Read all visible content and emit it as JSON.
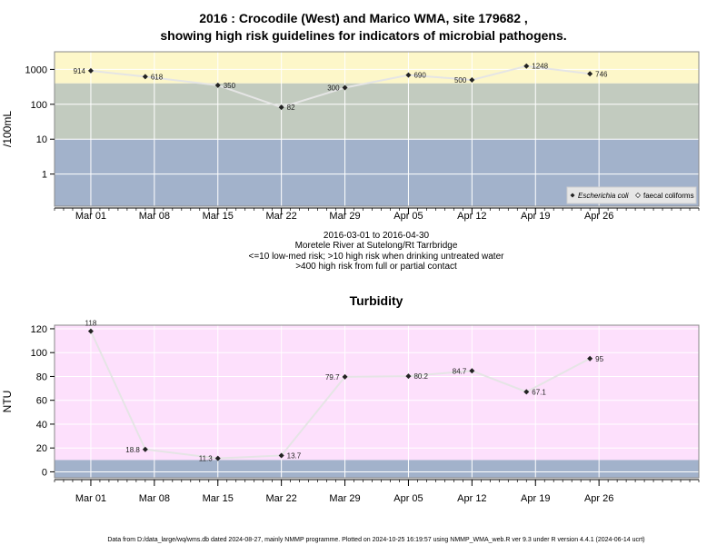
{
  "chart_data": [
    {
      "type": "line",
      "title": [
        "2016 : Crocodile (West) and Marico WMA, site 179682 ,",
        "showing high risk guidelines for indicators of microbial pathogens."
      ],
      "ylabel": "/100mL",
      "xlabel": [
        "2016-03-01 to 2016-04-30",
        "Moretele River at Sutelong/Rt Tarrbridge",
        "<=10 low-med risk; >10 high risk when drinking untreated water",
        ">400 high risk from full or partial contact"
      ],
      "yscale": "log",
      "ylim": [
        0.12,
        3200
      ],
      "xlim": [
        "2016-02-26",
        "2016-05-07"
      ],
      "yticks": [
        1,
        10,
        100,
        1000
      ],
      "ytick_labels": [
        "1",
        "10",
        "100",
        "1000"
      ],
      "xticks": [
        "2016-03-01",
        "2016-03-08",
        "2016-03-15",
        "2016-03-22",
        "2016-03-29",
        "2016-04-05",
        "2016-04-12",
        "2016-04-19",
        "2016-04-26"
      ],
      "xtick_labels": [
        "Mar 01",
        "Mar 08",
        "Mar 15",
        "Mar 22",
        "Mar 29",
        "Apr 05",
        "Apr 12",
        "Apr 19",
        "Apr 26"
      ],
      "bands": [
        {
          "from": 0.12,
          "to": 10,
          "color": "#a2b2cb"
        },
        {
          "from": 10,
          "to": 400,
          "color": "#c2cbbf"
        },
        {
          "from": 400,
          "to": 3200,
          "color": "#fdf7c9"
        }
      ],
      "grid": true,
      "legend": {
        "placement": "bottom-right",
        "entries": [
          "Escherichia coli",
          "faecal coliforms"
        ]
      },
      "series": [
        {
          "name": "Escherichia coli",
          "x": [
            "2016-03-01",
            "2016-03-07",
            "2016-03-15",
            "2016-03-22",
            "2016-03-29",
            "2016-04-05",
            "2016-04-12",
            "2016-04-18",
            "2016-04-25"
          ],
          "values": [
            914,
            618,
            350,
            82,
            300,
            690,
            500,
            1248,
            746
          ],
          "labels": [
            "914",
            "618",
            "350",
            "82",
            "300",
            "690",
            "500",
            "1248",
            "746"
          ],
          "label_side": [
            "left",
            "right",
            "right",
            "right",
            "left",
            "right",
            "left",
            "right",
            "right"
          ]
        }
      ]
    },
    {
      "type": "line",
      "title": "Turbidity",
      "ylabel": "NTU",
      "ylim": [
        -5,
        123
      ],
      "xlim": [
        "2016-02-26",
        "2016-05-07"
      ],
      "yticks": [
        0,
        20,
        40,
        60,
        80,
        100,
        120
      ],
      "ytick_labels": [
        "0",
        "20",
        "40",
        "60",
        "80",
        "100",
        "120"
      ],
      "xticks": [
        "2016-03-01",
        "2016-03-08",
        "2016-03-15",
        "2016-03-22",
        "2016-03-29",
        "2016-04-05",
        "2016-04-12",
        "2016-04-19",
        "2016-04-26"
      ],
      "xtick_labels": [
        "Mar 01",
        "Mar 08",
        "Mar 15",
        "Mar 22",
        "Mar 29",
        "Apr 05",
        "Apr 12",
        "Apr 19",
        "Apr 26"
      ],
      "bands": [
        {
          "from": -5,
          "to": 10,
          "color": "#a2b2cb"
        },
        {
          "from": 10,
          "to": 123,
          "color": "#fde0fc"
        }
      ],
      "grid": true,
      "series": [
        {
          "x": [
            "2016-03-01",
            "2016-03-07",
            "2016-03-15",
            "2016-03-22",
            "2016-03-29",
            "2016-04-05",
            "2016-04-12",
            "2016-04-18",
            "2016-04-25"
          ],
          "values": [
            118,
            18.8,
            11.3,
            13.7,
            79.7,
            80.2,
            84.7,
            67.1,
            95
          ],
          "labels": [
            "118",
            "18.8",
            "11.3",
            "13.7",
            "79.7",
            "80.2",
            "84.7",
            "67.1",
            "95"
          ],
          "label_side": [
            "above",
            "left",
            "left",
            "right",
            "left",
            "right",
            "left",
            "right",
            "right"
          ]
        }
      ]
    }
  ],
  "footer": "Data from D:/data_large/wq/wms.db dated 2024-08-27, mainly NMMP programme. Plotted on 2024-10-25 16:19:57 using NMMP_WMA_web.R ver 9.3 under R version 4.4.1 (2024-06-14 ucrt)",
  "colors": {
    "line": "#e5e5e5",
    "marker": "#222222",
    "grid": "#ffffff",
    "frame": "#888888"
  }
}
